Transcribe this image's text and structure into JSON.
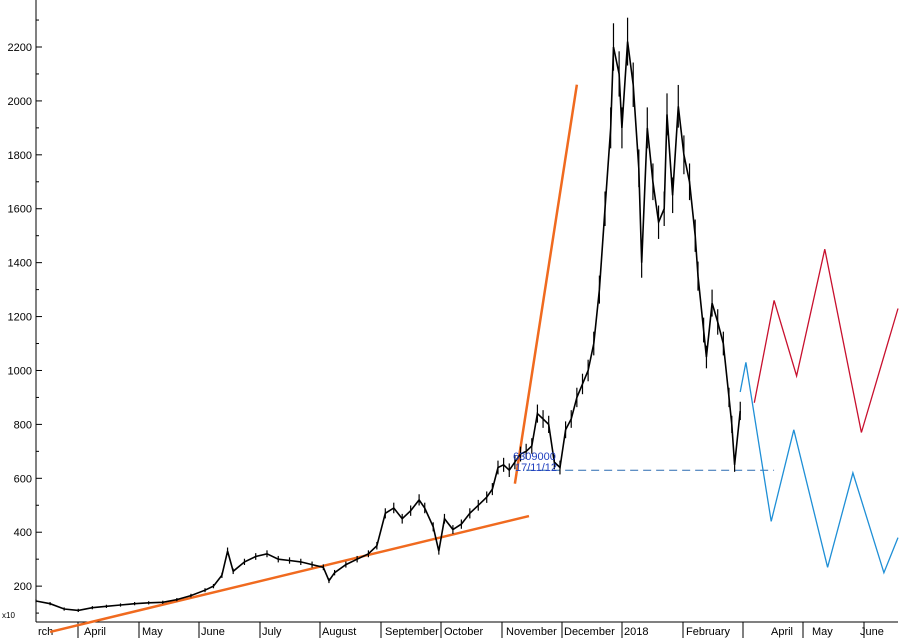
{
  "chart_data": {
    "type": "line",
    "y_ticks": [
      200,
      400,
      600,
      800,
      1000,
      1200,
      1400,
      1600,
      1800,
      2000,
      2200
    ],
    "ylim": [
      50,
      2330
    ],
    "scale_note": "x10",
    "months": [
      "rch",
      "April",
      "May",
      "June",
      "July",
      "August",
      "September",
      "October",
      "November",
      "December",
      "2018",
      "February",
      "April",
      "May",
      "June"
    ],
    "annotation": {
      "value_text": "6309000",
      "date_text": "17/11/12",
      "level": 630
    },
    "price": [
      [
        0,
        145
      ],
      [
        5,
        135
      ],
      [
        10,
        115
      ],
      [
        15,
        110
      ],
      [
        20,
        120
      ],
      [
        25,
        125
      ],
      [
        30,
        130
      ],
      [
        35,
        135
      ],
      [
        40,
        138
      ],
      [
        45,
        140
      ],
      [
        50,
        150
      ],
      [
        55,
        165
      ],
      [
        60,
        185
      ],
      [
        63,
        200
      ],
      [
        66,
        240
      ],
      [
        68,
        330
      ],
      [
        70,
        255
      ],
      [
        74,
        290
      ],
      [
        78,
        310
      ],
      [
        82,
        320
      ],
      [
        86,
        300
      ],
      [
        90,
        295
      ],
      [
        94,
        290
      ],
      [
        98,
        280
      ],
      [
        102,
        270
      ],
      [
        104,
        220
      ],
      [
        106,
        250
      ],
      [
        110,
        280
      ],
      [
        114,
        300
      ],
      [
        118,
        320
      ],
      [
        121,
        350
      ],
      [
        124,
        470
      ],
      [
        127,
        490
      ],
      [
        130,
        450
      ],
      [
        133,
        480
      ],
      [
        136,
        520
      ],
      [
        138,
        490
      ],
      [
        141,
        420
      ],
      [
        143,
        330
      ],
      [
        145,
        450
      ],
      [
        148,
        410
      ],
      [
        151,
        430
      ],
      [
        154,
        470
      ],
      [
        157,
        500
      ],
      [
        160,
        530
      ],
      [
        162,
        560
      ],
      [
        164,
        640
      ],
      [
        166,
        650
      ],
      [
        168,
        630
      ],
      [
        170,
        660
      ],
      [
        172,
        690
      ],
      [
        174,
        700
      ],
      [
        176,
        720
      ],
      [
        178,
        840
      ],
      [
        180,
        820
      ],
      [
        182,
        800
      ],
      [
        184,
        660
      ],
      [
        186,
        640
      ],
      [
        188,
        780
      ],
      [
        190,
        820
      ],
      [
        192,
        900
      ],
      [
        194,
        950
      ],
      [
        196,
        1000
      ],
      [
        198,
        1100
      ],
      [
        200,
        1300
      ],
      [
        202,
        1600
      ],
      [
        204,
        1900
      ],
      [
        205,
        2200
      ],
      [
        207,
        2100
      ],
      [
        208,
        1900
      ],
      [
        210,
        2220
      ],
      [
        212,
        2060
      ],
      [
        214,
        1750
      ],
      [
        215,
        1400
      ],
      [
        217,
        1900
      ],
      [
        219,
        1700
      ],
      [
        221,
        1550
      ],
      [
        223,
        1600
      ],
      [
        224,
        1950
      ],
      [
        226,
        1650
      ],
      [
        228,
        1980
      ],
      [
        230,
        1800
      ],
      [
        232,
        1700
      ],
      [
        234,
        1500
      ],
      [
        235,
        1350
      ],
      [
        237,
        1150
      ],
      [
        238,
        1050
      ],
      [
        240,
        1250
      ],
      [
        242,
        1180
      ],
      [
        244,
        1100
      ],
      [
        246,
        900
      ],
      [
        247,
        800
      ],
      [
        248,
        650
      ],
      [
        250,
        850
      ]
    ],
    "support_line": {
      "points": [
        [
          5,
          30
        ],
        [
          175,
          460
        ]
      ]
    },
    "steep_line": {
      "points": [
        [
          170,
          580
        ],
        [
          192,
          2060
        ]
      ]
    },
    "projection_red": [
      [
        255,
        880
      ],
      [
        262,
        1260
      ],
      [
        270,
        980
      ],
      [
        280,
        1450
      ],
      [
        293,
        770
      ],
      [
        306,
        1230
      ]
    ],
    "projection_blue": [
      [
        250,
        920
      ],
      [
        252,
        1030
      ],
      [
        261,
        440
      ],
      [
        269,
        780
      ],
      [
        281,
        270
      ],
      [
        290,
        620
      ],
      [
        301,
        250
      ],
      [
        306,
        380
      ]
    ]
  }
}
